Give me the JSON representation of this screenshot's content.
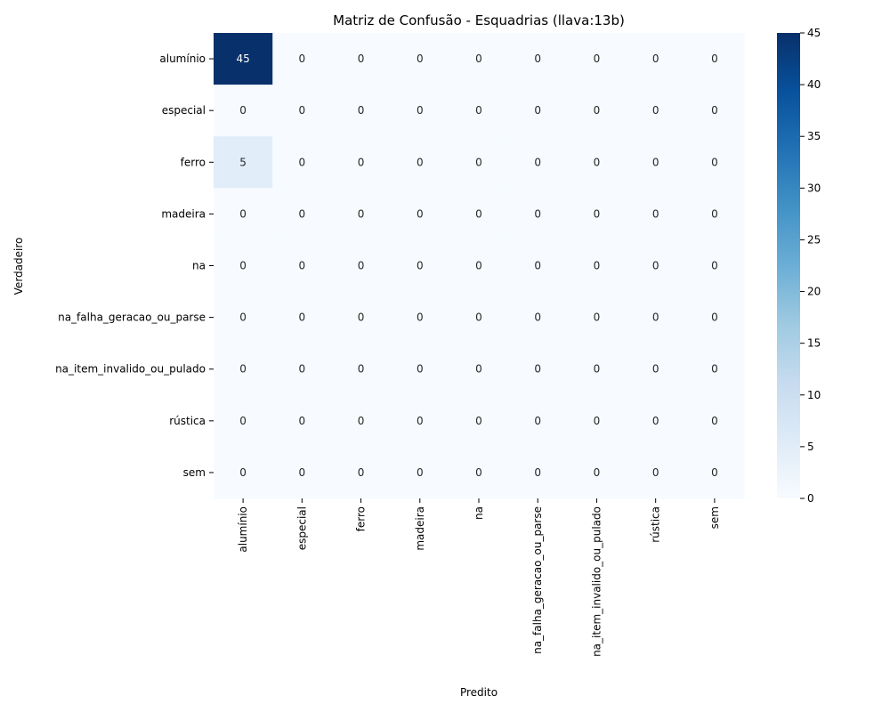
{
  "chart_data": {
    "type": "heatmap",
    "title": "Matriz de Confusão - Esquadrias (llava:13b)",
    "xlabel": "Predito",
    "ylabel": "Verdadeiro",
    "x_categories": [
      "alumínio",
      "especial",
      "ferro",
      "madeira",
      "na",
      "na_falha_geracao_ou_parse",
      "na_item_invalido_ou_pulado",
      "rústica",
      "sem"
    ],
    "y_categories": [
      "alumínio",
      "especial",
      "ferro",
      "madeira",
      "na",
      "na_falha_geracao_ou_parse",
      "na_item_invalido_ou_pulado",
      "rústica",
      "sem"
    ],
    "values": [
      [
        45,
        0,
        0,
        0,
        0,
        0,
        0,
        0,
        0
      ],
      [
        0,
        0,
        0,
        0,
        0,
        0,
        0,
        0,
        0
      ],
      [
        5,
        0,
        0,
        0,
        0,
        0,
        0,
        0,
        0
      ],
      [
        0,
        0,
        0,
        0,
        0,
        0,
        0,
        0,
        0
      ],
      [
        0,
        0,
        0,
        0,
        0,
        0,
        0,
        0,
        0
      ],
      [
        0,
        0,
        0,
        0,
        0,
        0,
        0,
        0,
        0
      ],
      [
        0,
        0,
        0,
        0,
        0,
        0,
        0,
        0,
        0
      ],
      [
        0,
        0,
        0,
        0,
        0,
        0,
        0,
        0,
        0
      ],
      [
        0,
        0,
        0,
        0,
        0,
        0,
        0,
        0,
        0
      ]
    ],
    "colormap": "Blues",
    "colorbar": {
      "range": [
        0,
        45
      ],
      "ticks": [
        "0",
        "5",
        "10",
        "15",
        "20",
        "25",
        "30",
        "35",
        "40",
        "45"
      ]
    },
    "annotations": true
  }
}
